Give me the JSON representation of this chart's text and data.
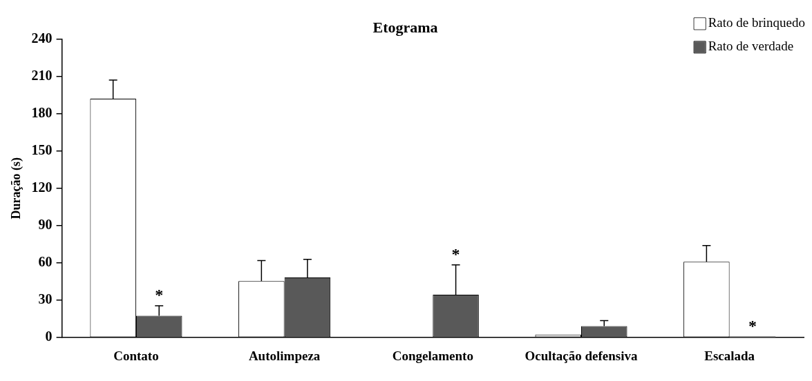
{
  "chart_data": {
    "type": "bar",
    "title": "Etograma",
    "ylabel": "Duração (s)",
    "categories": [
      "Contato",
      "Autolimpeza",
      "Congelamento",
      "Ocultação defensiva",
      "Escalada"
    ],
    "series": [
      {
        "name": "Rato de brinquedo",
        "color": "#ffffff",
        "values": [
          192,
          45.5,
          0,
          2.5,
          61
        ],
        "errors": [
          15,
          16.5,
          null,
          null,
          13
        ]
      },
      {
        "name": "Rato de verdade",
        "color": "#595959",
        "values": [
          17.6,
          48.4,
          34.5,
          9.3,
          1
        ],
        "errors": [
          8,
          14.5,
          24,
          4.4,
          null
        ]
      }
    ],
    "ylim": [
      0,
      240
    ],
    "yticks": [
      0,
      30,
      60,
      90,
      120,
      150,
      180,
      210,
      240
    ],
    "grid": false,
    "legend": "top right",
    "annotations": [
      {
        "text": "*",
        "x": "Contato",
        "y": 17.6
      },
      {
        "text": "*",
        "x": "Congelamento",
        "y": 34.5
      },
      {
        "text": "*",
        "x": "Escalada",
        "y": 1
      }
    ]
  }
}
